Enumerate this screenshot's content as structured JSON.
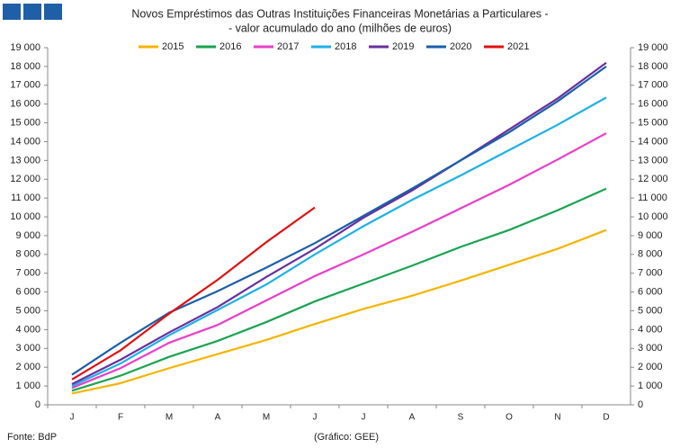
{
  "chart_data": {
    "type": "line",
    "title": "Novos Empréstimos das Outras Instituições Financeiras Monetárias a Particulares -",
    "subtitle": "- valor acumulado  do ano (milhões de euros)",
    "categories": [
      "J",
      "F",
      "M",
      "A",
      "M",
      "J",
      "J",
      "A",
      "S",
      "O",
      "N",
      "D"
    ],
    "series": [
      {
        "name": "2015",
        "color": "#f4b400",
        "values": [
          600,
          1150,
          1950,
          2700,
          3450,
          4300,
          5100,
          5800,
          6600,
          7450,
          8300,
          9300
        ]
      },
      {
        "name": "2016",
        "color": "#1aa350",
        "values": [
          750,
          1550,
          2550,
          3400,
          4400,
          5500,
          6450,
          7400,
          8400,
          9300,
          10350,
          11500
        ]
      },
      {
        "name": "2017",
        "color": "#e83fc8",
        "values": [
          900,
          1950,
          3300,
          4250,
          5550,
          6850,
          8000,
          9200,
          10450,
          11700,
          13050,
          14450
        ]
      },
      {
        "name": "2018",
        "color": "#1fb0e6",
        "values": [
          1000,
          2200,
          3700,
          5050,
          6400,
          8000,
          9500,
          10900,
          12200,
          13550,
          14900,
          16350
        ]
      },
      {
        "name": "2019",
        "color": "#6a2fa0",
        "values": [
          1100,
          2400,
          3850,
          5200,
          6800,
          8300,
          9950,
          11400,
          13000,
          14650,
          16300,
          18200
        ]
      },
      {
        "name": "2020",
        "color": "#1a5fa8",
        "values": [
          1600,
          3300,
          4900,
          6050,
          7300,
          8600,
          10050,
          11500,
          13000,
          14500,
          16150,
          18000
        ]
      },
      {
        "name": "2021",
        "color": "#e01010",
        "values": [
          1350,
          2900,
          4850,
          6650,
          8650,
          10500,
          null,
          null,
          null,
          null,
          null,
          null
        ]
      }
    ],
    "ylim": [
      0,
      19000
    ],
    "yticks": [
      0,
      {
        "value": 1000,
        "label": "1 000"
      },
      {
        "value": 2000,
        "label": "2 000"
      },
      {
        "value": 3000,
        "label": "3 000"
      },
      {
        "value": 4000,
        "label": "4 000"
      },
      {
        "value": 5000,
        "label": "5 000"
      },
      {
        "value": 6000,
        "label": "6 000"
      },
      {
        "value": 7000,
        "label": "7 000"
      },
      {
        "value": 8000,
        "label": "8 000"
      },
      {
        "value": 9000,
        "label": "9 000"
      },
      {
        "value": 10000,
        "label": "10 000"
      },
      {
        "value": 11000,
        "label": "11 000"
      },
      {
        "value": 12000,
        "label": "12 000"
      },
      {
        "value": 13000,
        "label": "13 000"
      },
      {
        "value": 14000,
        "label": "14 000"
      },
      {
        "value": 15000,
        "label": "15 000"
      },
      {
        "value": 16000,
        "label": "16 000"
      },
      {
        "value": 17000,
        "label": "17 000"
      },
      {
        "value": 18000,
        "label": "18 000"
      },
      {
        "value": 19000,
        "label": "19 000"
      }
    ],
    "y2lim": [
      0,
      19000
    ],
    "y2ticks": [
      0,
      {
        "value": 1000,
        "label": "1 000"
      },
      {
        "value": 2000,
        "label": "2 000"
      },
      {
        "value": 3000,
        "label": "3 000"
      },
      {
        "value": 4000,
        "label": "4 000"
      },
      {
        "value": 5000,
        "label": "5 000"
      },
      {
        "value": 6000,
        "label": "6 000"
      },
      {
        "value": 7000,
        "label": "7 000"
      },
      {
        "value": 8000,
        "label": "8 000"
      },
      {
        "value": 9000,
        "label": "9 000"
      },
      {
        "value": 10000,
        "label": "10 000"
      },
      {
        "value": 11000,
        "label": "11 000"
      },
      {
        "value": 12000,
        "label": "12 000"
      },
      {
        "value": 13000,
        "label": "13 000"
      },
      {
        "value": 14000,
        "label": "14 000"
      },
      {
        "value": 15000,
        "label": "15 000"
      },
      {
        "value": 16000,
        "label": "16 000"
      },
      {
        "value": 17000,
        "label": "17 000"
      },
      {
        "value": 18000,
        "label": "18 000"
      },
      {
        "value": 19000,
        "label": "19 000"
      }
    ],
    "source": "Fonte: BdP",
    "credit": "(Gráfico: GEE)",
    "grid": false,
    "legend": "top"
  }
}
